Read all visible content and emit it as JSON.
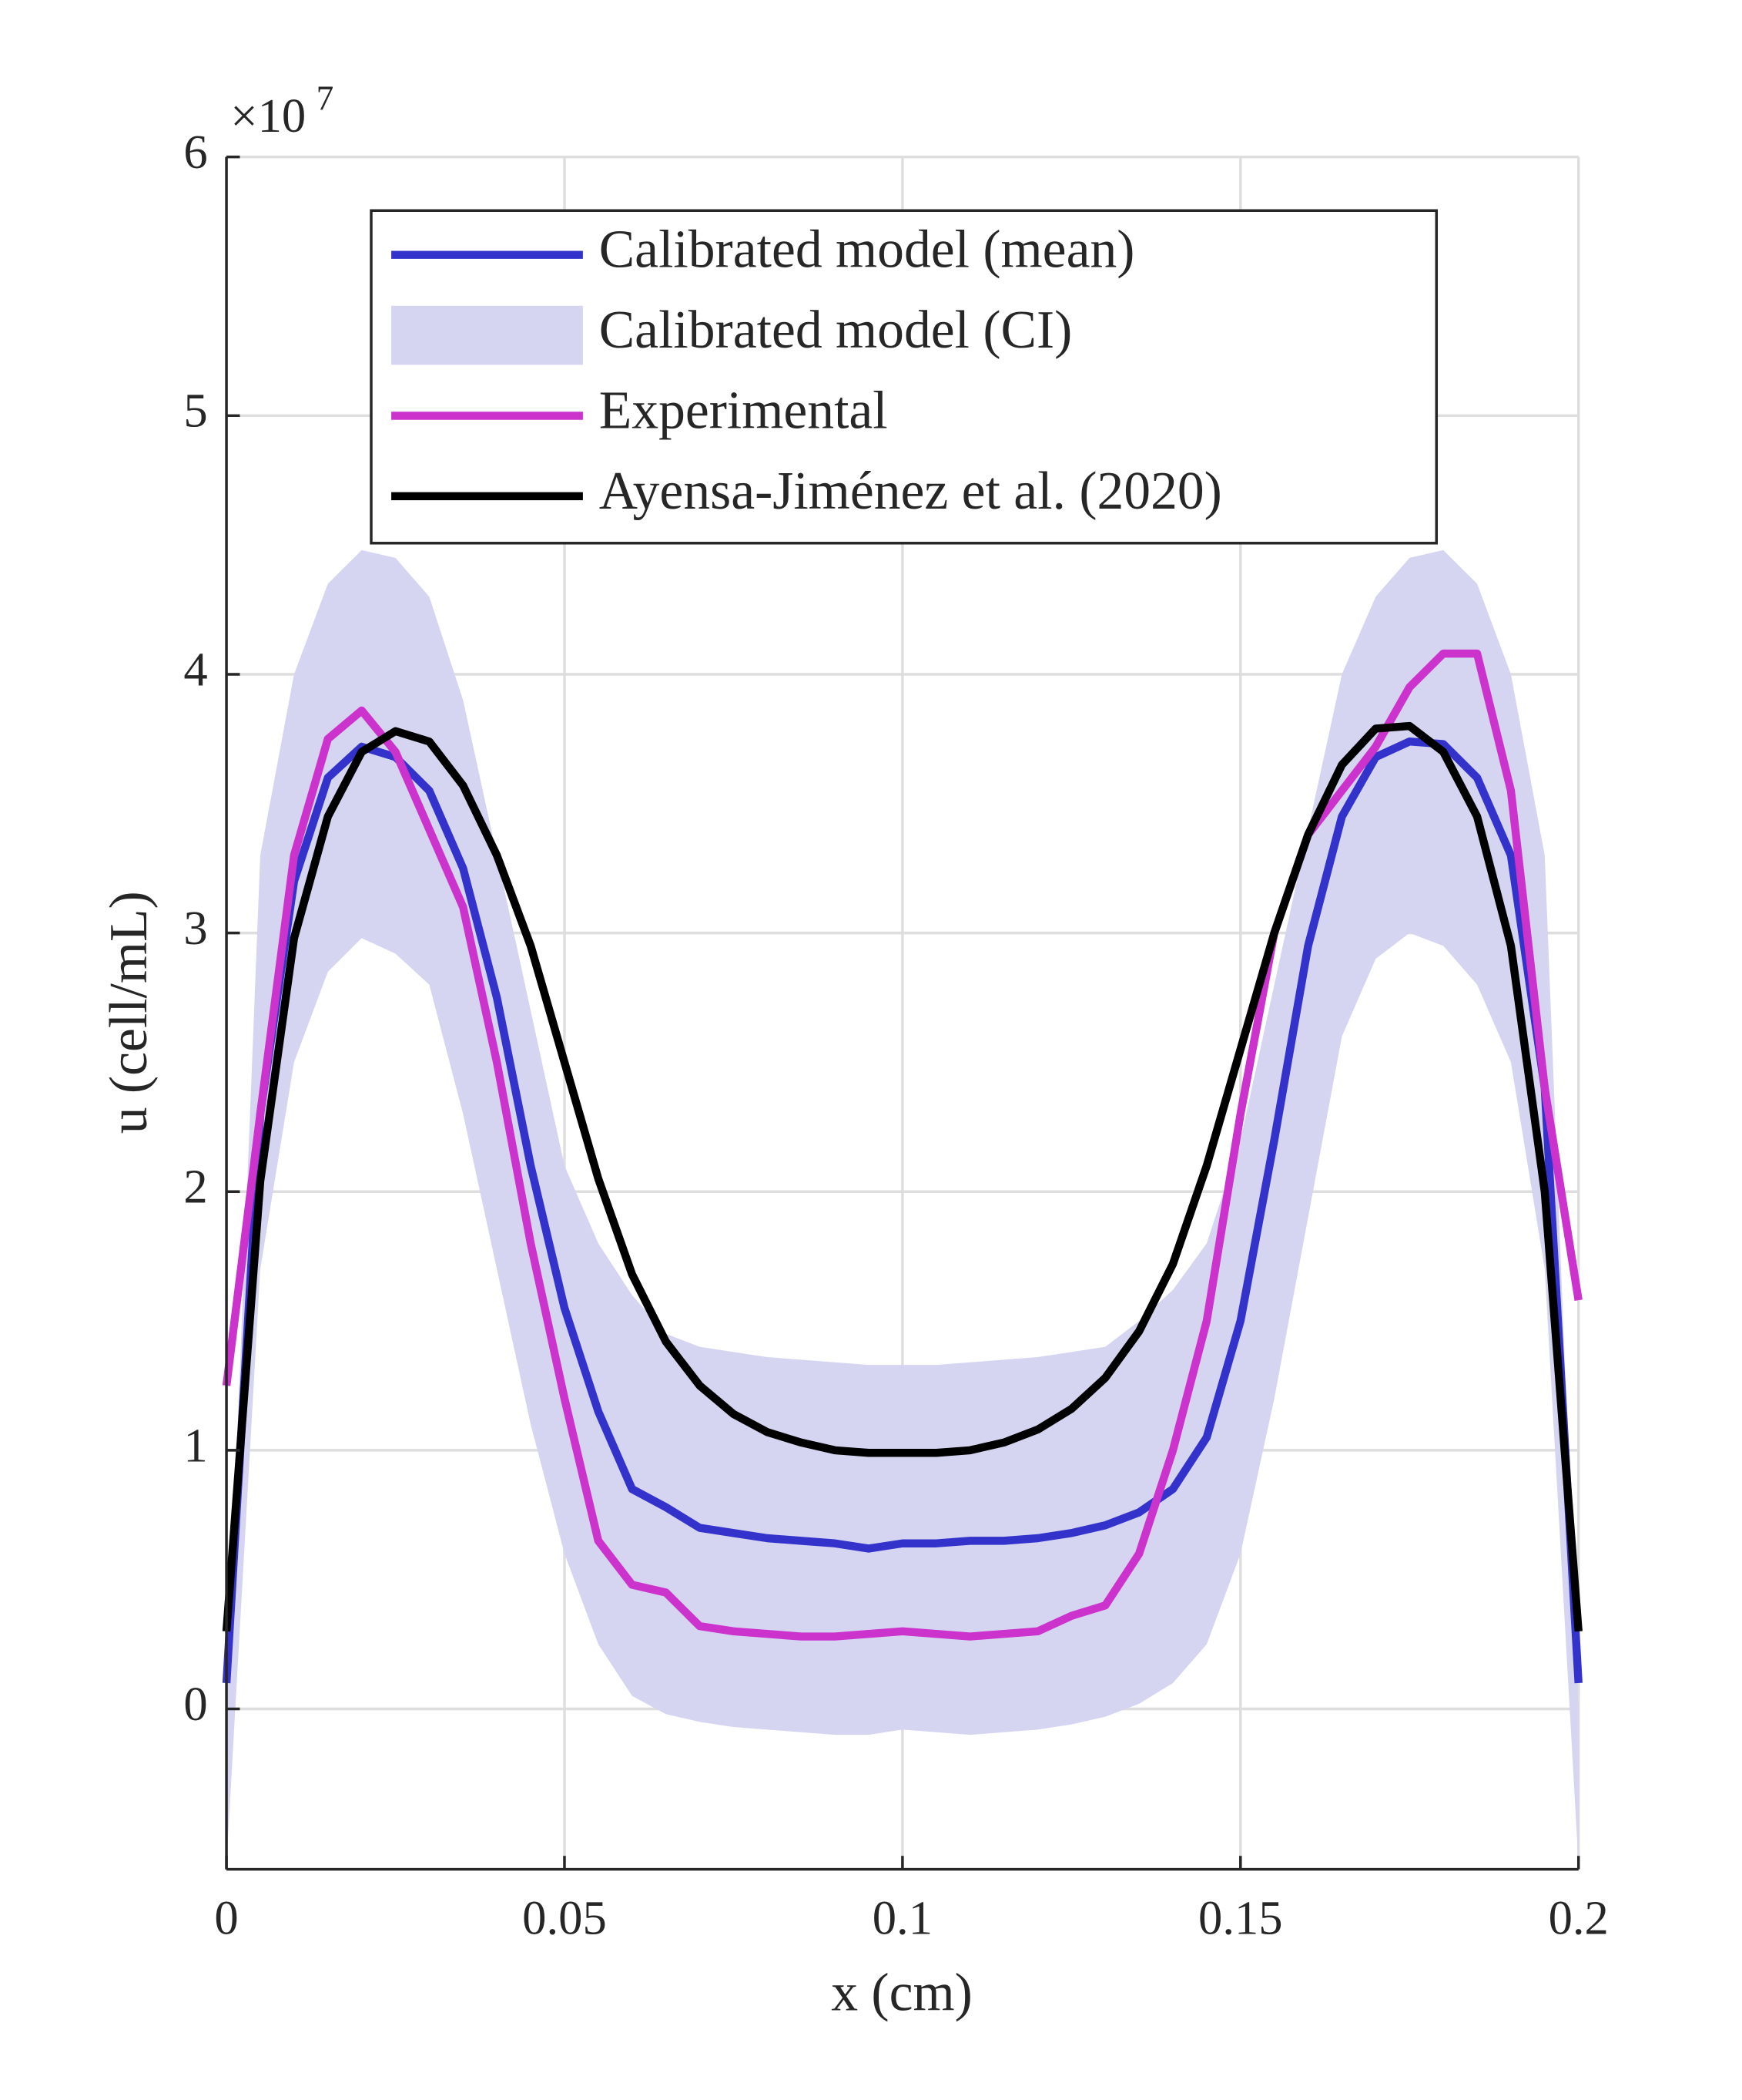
{
  "chart_data": {
    "type": "line",
    "xlabel": "x (cm)",
    "ylabel": "u (cell/mL)",
    "y_multiplier": "×10",
    "y_multiplier_exp": "7",
    "x": [
      0,
      0.005,
      0.01,
      0.015,
      0.02,
      0.025,
      0.03,
      0.035,
      0.04,
      0.045,
      0.05,
      0.055,
      0.06,
      0.065,
      0.07,
      0.075,
      0.08,
      0.085,
      0.09,
      0.095,
      0.1,
      0.105,
      0.11,
      0.115,
      0.12,
      0.125,
      0.13,
      0.135,
      0.14,
      0.145,
      0.15,
      0.155,
      0.16,
      0.165,
      0.17,
      0.175,
      0.18,
      0.185,
      0.19,
      0.195,
      0.2
    ],
    "series": [
      {
        "name": "Calibrated model (mean)",
        "color": "#3333cc",
        "values": [
          0.1,
          2.3,
          3.2,
          3.6,
          3.72,
          3.68,
          3.55,
          3.25,
          2.75,
          2.1,
          1.55,
          1.15,
          0.85,
          0.78,
          0.7,
          0.68,
          0.66,
          0.65,
          0.64,
          0.62,
          0.64,
          0.64,
          0.65,
          0.65,
          0.66,
          0.68,
          0.71,
          0.76,
          0.85,
          1.05,
          1.5,
          2.2,
          2.95,
          3.45,
          3.68,
          3.74,
          3.73,
          3.6,
          3.3,
          2.4,
          0.1
        ]
      },
      {
        "name": "Calibrated model (CI)",
        "color": "#d5d5f2",
        "lower": [
          -0.6,
          1.7,
          2.5,
          2.85,
          2.98,
          2.92,
          2.8,
          2.3,
          1.7,
          1.1,
          0.6,
          0.25,
          0.05,
          -0.02,
          -0.05,
          -0.07,
          -0.08,
          -0.09,
          -0.1,
          -0.1,
          -0.08,
          -0.09,
          -0.1,
          -0.09,
          -0.08,
          -0.06,
          -0.03,
          0.02,
          0.1,
          0.25,
          0.6,
          1.2,
          1.9,
          2.6,
          2.9,
          3.0,
          2.95,
          2.8,
          2.5,
          1.7,
          -0.6
        ],
        "upper": [
          0,
          3.3,
          4.0,
          4.35,
          4.48,
          4.45,
          4.3,
          3.9,
          3.3,
          2.7,
          2.1,
          1.8,
          1.6,
          1.45,
          1.4,
          1.38,
          1.36,
          1.35,
          1.34,
          1.33,
          1.33,
          1.33,
          1.34,
          1.35,
          1.36,
          1.38,
          1.4,
          1.5,
          1.62,
          1.8,
          2.2,
          2.8,
          3.4,
          4.0,
          4.3,
          4.45,
          4.48,
          4.35,
          4.0,
          3.3,
          0
        ]
      },
      {
        "name": "Experimental",
        "color": "#cc33cc",
        "values": [
          1.25,
          2.3,
          3.3,
          3.75,
          3.86,
          3.7,
          3.4,
          3.1,
          2.5,
          1.8,
          1.2,
          0.65,
          0.48,
          0.45,
          0.32,
          0.3,
          0.29,
          0.28,
          0.28,
          0.29,
          0.3,
          0.29,
          0.28,
          0.29,
          0.3,
          0.36,
          0.4,
          0.6,
          1.0,
          1.5,
          2.3,
          3.0,
          3.38,
          3.55,
          3.72,
          3.95,
          4.08,
          4.08,
          3.55,
          2.4,
          1.58
        ]
      },
      {
        "name": "Ayensa-Jiménez et al. (2020)",
        "color": "#000000",
        "values": [
          0.3,
          2.04,
          2.98,
          3.45,
          3.7,
          3.78,
          3.74,
          3.57,
          3.3,
          2.95,
          2.5,
          2.05,
          1.68,
          1.42,
          1.25,
          1.14,
          1.07,
          1.03,
          1.0,
          0.99,
          0.99,
          0.99,
          1.0,
          1.03,
          1.08,
          1.16,
          1.28,
          1.46,
          1.72,
          2.1,
          2.55,
          3.0,
          3.38,
          3.65,
          3.79,
          3.8,
          3.7,
          3.45,
          2.95,
          2.0,
          0.3
        ]
      }
    ],
    "xlim": [
      0,
      0.2
    ],
    "xticks": [
      0,
      0.05,
      0.1,
      0.15,
      0.2
    ],
    "ylim": [
      -0.62,
      6
    ],
    "yticks": [
      0,
      1,
      2,
      3,
      4,
      5,
      6
    ],
    "grid": true,
    "legend": "top"
  }
}
